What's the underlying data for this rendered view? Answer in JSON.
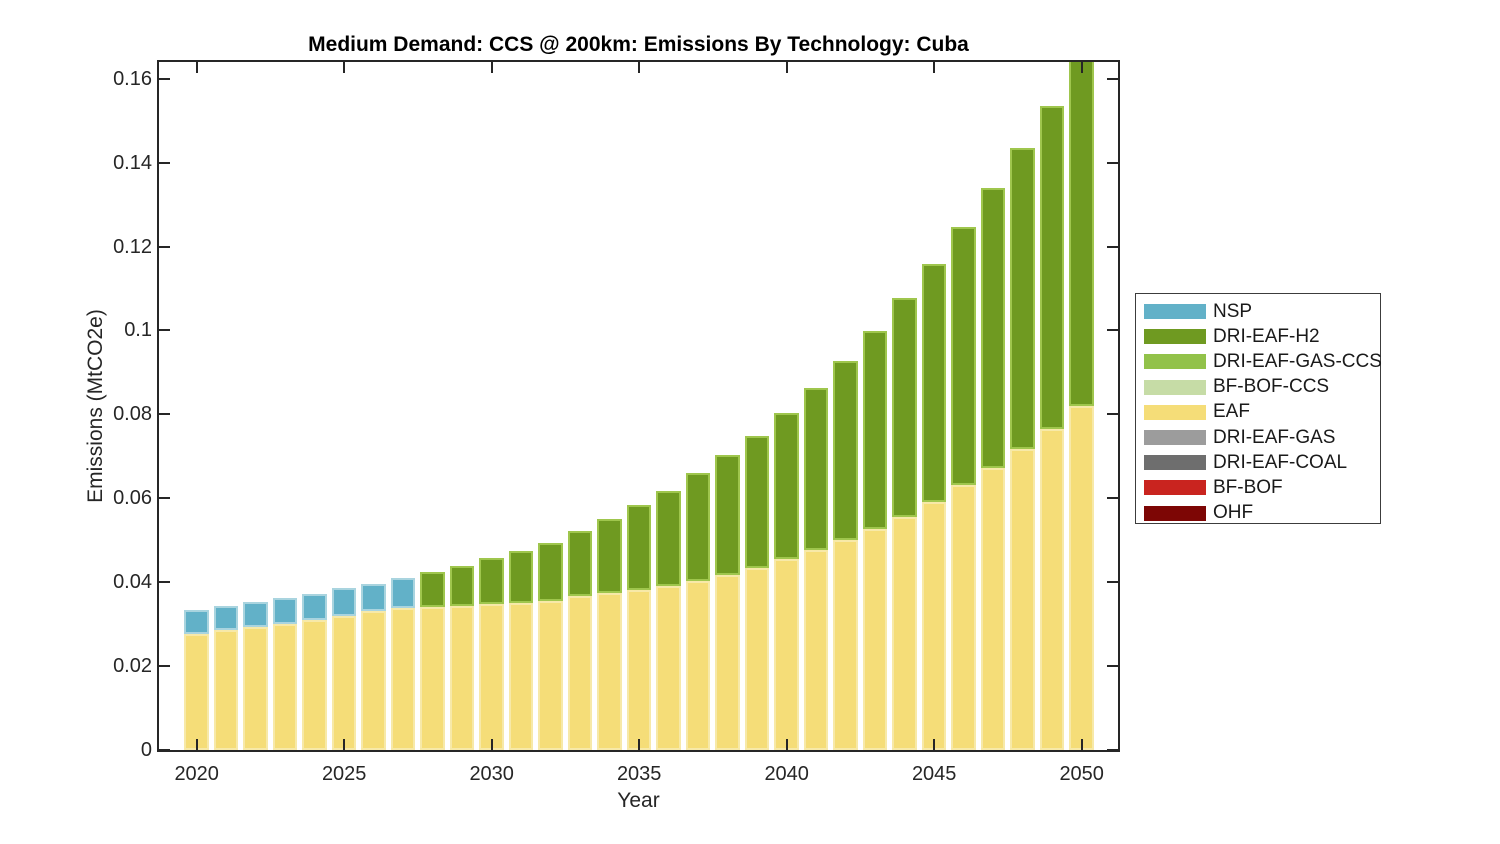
{
  "chart_data": {
    "type": "bar",
    "stacked": true,
    "title": "Medium Demand: CCS @ 200km: Emissions By Technology: Cuba",
    "xlabel": "Year",
    "ylabel": "Emissions (MtCO2e)",
    "x": [
      2020,
      2021,
      2022,
      2023,
      2024,
      2025,
      2026,
      2027,
      2028,
      2029,
      2030,
      2031,
      2032,
      2033,
      2034,
      2035,
      2036,
      2037,
      2038,
      2039,
      2040,
      2041,
      2042,
      2043,
      2044,
      2045,
      2046,
      2047,
      2048,
      2049,
      2050
    ],
    "xticks": [
      2020,
      2025,
      2030,
      2035,
      2040,
      2045,
      2050
    ],
    "xtick_labels": [
      "2020",
      "2025",
      "2030",
      "2035",
      "2040",
      "2045",
      "2050"
    ],
    "yticks": [
      0,
      0.02,
      0.04,
      0.06,
      0.08,
      0.1,
      0.12,
      0.14,
      0.16
    ],
    "ytick_labels": [
      "0",
      "0.02",
      "0.04",
      "0.06",
      "0.08",
      "0.1",
      "0.12",
      "0.14",
      "0.16"
    ],
    "ylim": [
      0,
      0.164
    ],
    "grid": false,
    "legend_position": "right-outside",
    "series": [
      {
        "name": "EAF",
        "color": "#f5dd78",
        "edge_color": "#f7e9a8",
        "values": [
          0.0277,
          0.0285,
          0.0293,
          0.0301,
          0.0309,
          0.0319,
          0.0331,
          0.0338,
          0.0342,
          0.0344,
          0.0347,
          0.0351,
          0.0355,
          0.0366,
          0.0375,
          0.0381,
          0.0392,
          0.0403,
          0.0417,
          0.0435,
          0.0455,
          0.0477,
          0.05,
          0.0526,
          0.0556,
          0.0592,
          0.0631,
          0.0673,
          0.0717,
          0.0765,
          0.082
        ]
      },
      {
        "name": "NSP",
        "color": "#62b1c8",
        "edge_color": "#a9d4df",
        "values": [
          0.0057,
          0.0058,
          0.0061,
          0.0061,
          0.0062,
          0.0067,
          0.0065,
          0.0071,
          0,
          0,
          0,
          0,
          0,
          0,
          0,
          0,
          0,
          0,
          0,
          0,
          0,
          0,
          0,
          0,
          0,
          0,
          0,
          0,
          0,
          0,
          0
        ]
      },
      {
        "name": "DRI-EAF-H2",
        "color": "#6f9a21",
        "edge_color": "#9fc64d",
        "values": [
          0,
          0,
          0,
          0,
          0,
          0,
          0,
          0,
          0.0083,
          0.0095,
          0.011,
          0.0124,
          0.0139,
          0.0157,
          0.0176,
          0.0202,
          0.0226,
          0.0257,
          0.0286,
          0.0314,
          0.0348,
          0.0387,
          0.0428,
          0.0474,
          0.0521,
          0.0567,
          0.0616,
          0.0667,
          0.0718,
          0.0769,
          0.083
        ]
      }
    ],
    "legend": [
      {
        "label": "NSP",
        "color": "#62b1c8"
      },
      {
        "label": "DRI-EAF-H2",
        "color": "#6f9a21"
      },
      {
        "label": "DRI-EAF-GAS-CCS",
        "color": "#92c24a"
      },
      {
        "label": "BF-BOF-CCS",
        "color": "#c6dca6"
      },
      {
        "label": "EAF",
        "color": "#f5dd78"
      },
      {
        "label": "DRI-EAF-GAS",
        "color": "#9c9c9c"
      },
      {
        "label": "DRI-EAF-COAL",
        "color": "#6e6e6e"
      },
      {
        "label": "BF-BOF",
        "color": "#c9241f"
      },
      {
        "label": "OHF",
        "color": "#7d0605"
      }
    ]
  }
}
